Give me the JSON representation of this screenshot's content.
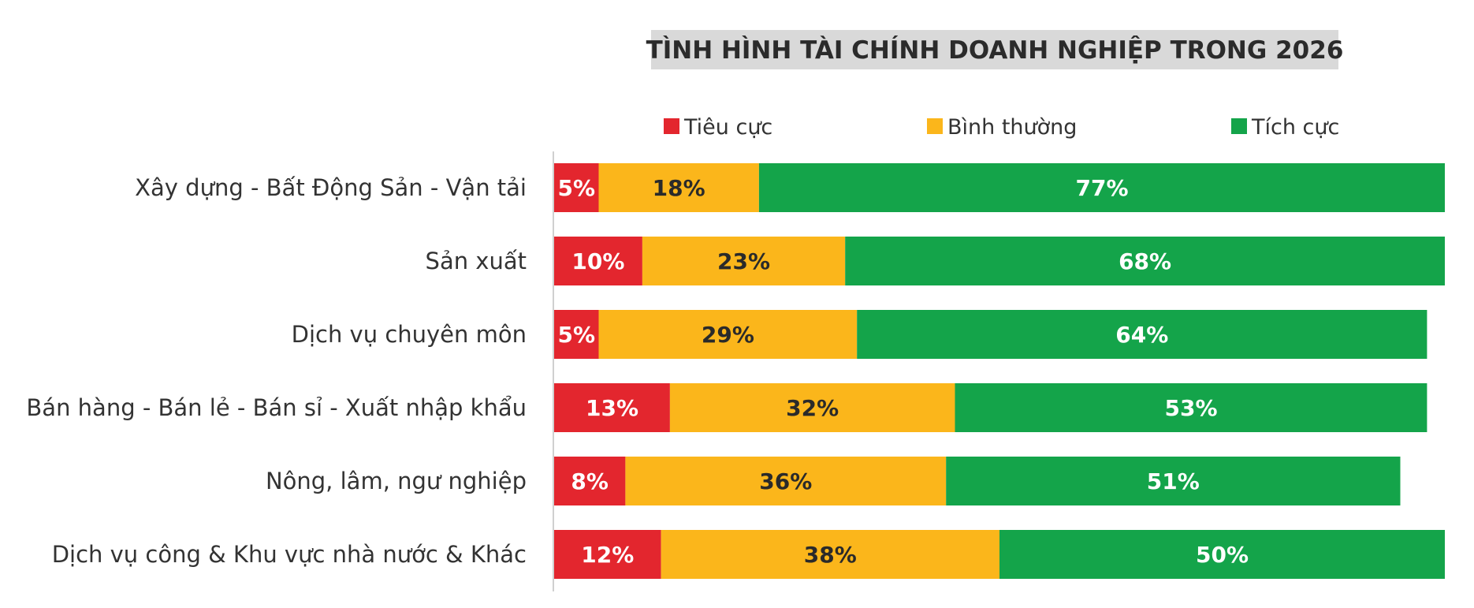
{
  "chart_data": {
    "type": "bar",
    "orientation": "horizontal",
    "stacked": true,
    "title": "TÌNH HÌNH TÀI CHÍNH DOANH NGHIỆP TRONG 2026",
    "legend_position": "top",
    "grid": false,
    "xlim": [
      0,
      100
    ],
    "categories": [
      "Xây dựng - Bất Động Sản - Vận tải",
      "Sản xuất",
      "Dịch vụ chuyên môn",
      "Bán hàng - Bán lẻ - Bán sỉ - Xuất nhập khẩu",
      "Nông, lâm, ngư nghiệp",
      "Dịch vụ công & Khu vực nhà nước & Khác"
    ],
    "series": [
      {
        "name": "Tiêu cực",
        "color": "#e3262e",
        "label_color": "#ffffff",
        "values": [
          5,
          10,
          5,
          13,
          8,
          12
        ],
        "labels": [
          "5%",
          "10%",
          "5%",
          "13%",
          "8%",
          "12%"
        ]
      },
      {
        "name": "Bình thường",
        "color": "#fbb61b",
        "label_color": "#2a2a2a",
        "values": [
          18,
          23,
          29,
          32,
          36,
          38
        ],
        "labels": [
          "18%",
          "23%",
          "29%",
          "32%",
          "36%",
          "38%"
        ]
      },
      {
        "name": "Tích cực",
        "color": "#14a44a",
        "label_color": "#ffffff",
        "values": [
          77,
          68,
          64,
          53,
          51,
          50
        ],
        "labels": [
          "77%",
          "68%",
          "64%",
          "53%",
          "51%",
          "50%"
        ]
      }
    ]
  },
  "colors": {
    "title_background": "#d9d9d9",
    "axis_line": "#d0d0d0"
  }
}
